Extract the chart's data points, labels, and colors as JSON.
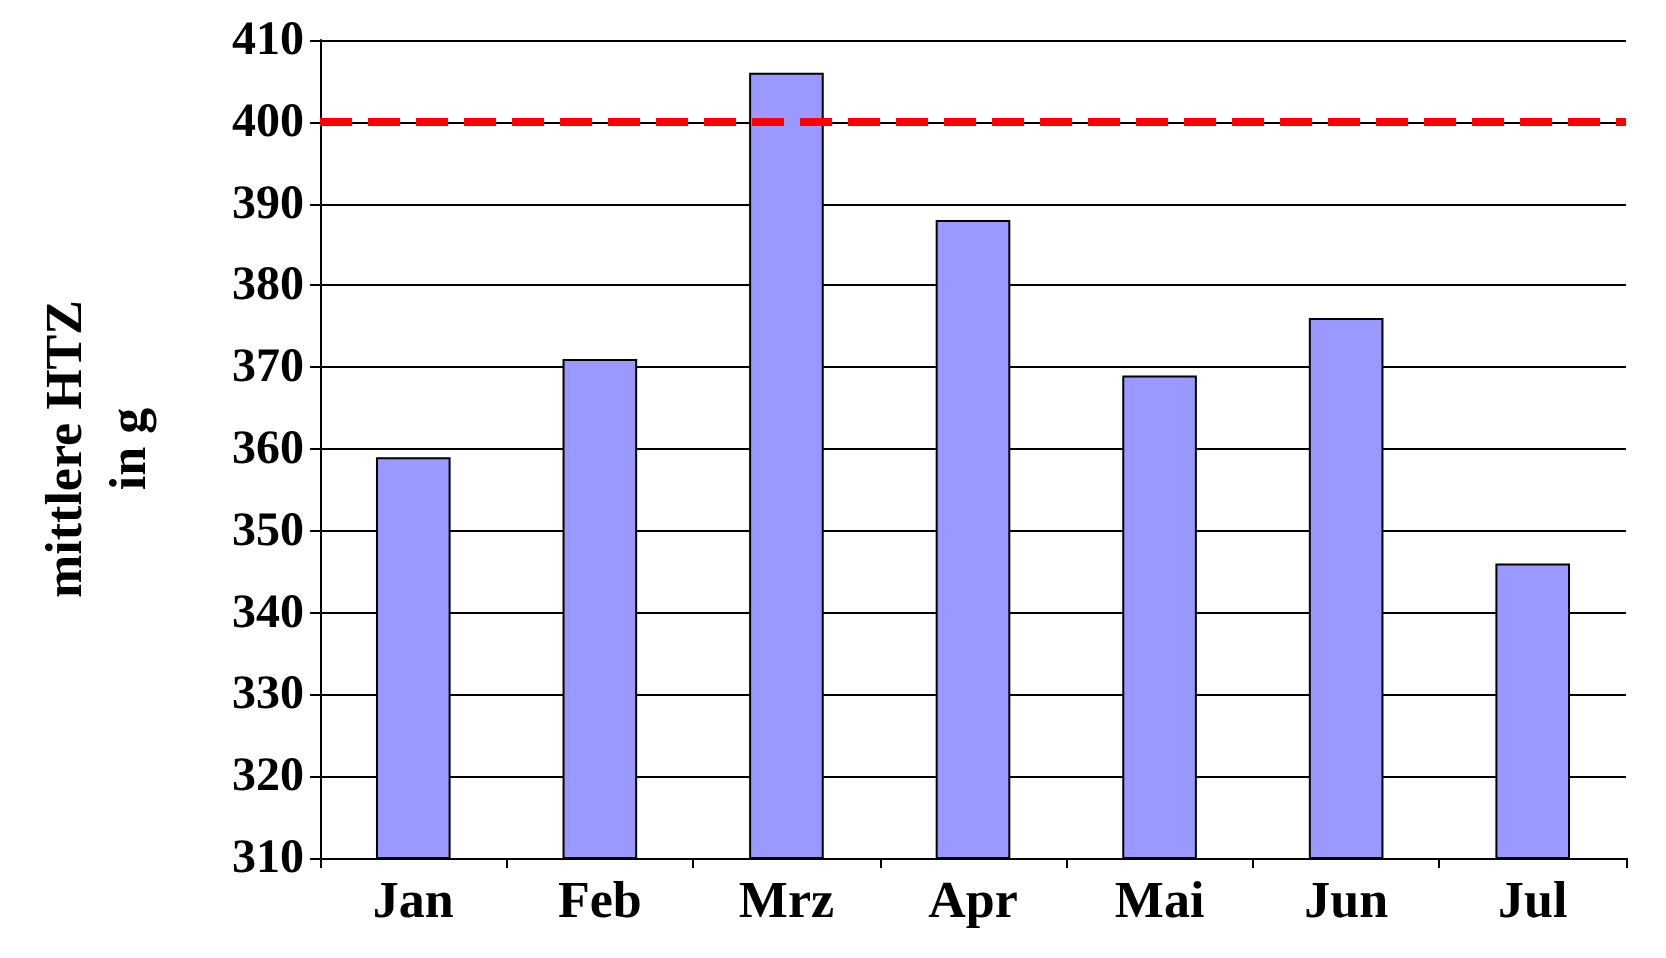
{
  "chart_data": {
    "type": "bar",
    "ylabel": "mittlere HTZ\nin g",
    "categories": [
      "Jan",
      "Feb",
      "Mrz",
      "Apr",
      "Mai",
      "Jun",
      "Jul"
    ],
    "values": [
      359,
      371,
      406,
      388,
      369,
      376,
      346
    ],
    "color": "#9999ff",
    "ylim": [
      310,
      410
    ],
    "yticks": [
      310,
      320,
      330,
      340,
      350,
      360,
      370,
      380,
      390,
      400,
      410
    ],
    "grid": "y",
    "ref_lines": [
      {
        "axis": "y",
        "value": 400,
        "color": "#ff0000",
        "line_style": "dashed"
      }
    ]
  }
}
